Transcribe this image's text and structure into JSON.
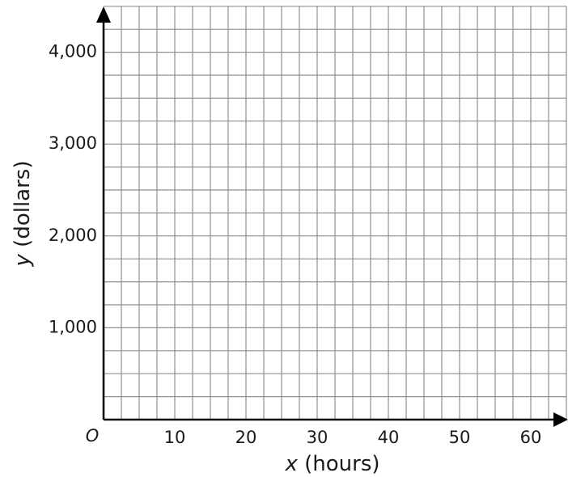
{
  "chart_data": {
    "type": "line",
    "series": [],
    "x": {
      "label_var": "x",
      "label_unit": " (hours)",
      "range": [
        0,
        65
      ],
      "ticks": [
        10,
        20,
        30,
        40,
        50,
        60
      ],
      "tick_labels": [
        "10",
        "20",
        "30",
        "40",
        "50",
        "60"
      ],
      "minor_step": 2.5
    },
    "y": {
      "label_var": "y",
      "label_unit": " (dollars)",
      "range": [
        0,
        4500
      ],
      "ticks": [
        1000,
        2000,
        3000,
        4000
      ],
      "tick_labels": [
        "1,000",
        "2,000",
        "3,000",
        "4,000"
      ],
      "minor_step": 250
    },
    "origin_label": "O",
    "grid": true
  }
}
